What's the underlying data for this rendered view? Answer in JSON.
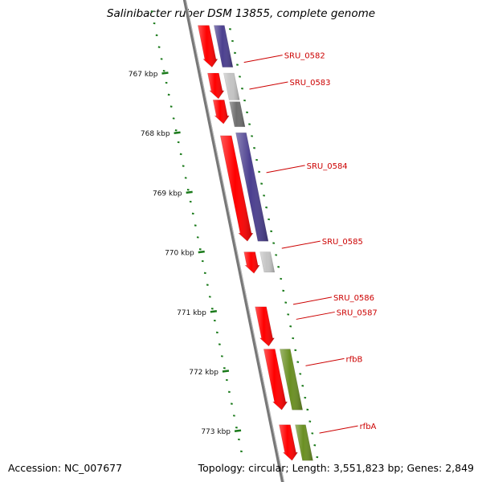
{
  "title": "Salinibacter ruber DSM 13855, complete genome",
  "accession_line": "Accession: NC_007677",
  "topology_line": "Topology: circular; Length: 3,551,823 bp; Genes: 2,849",
  "colors": {
    "forward_cds": "#ff0000",
    "reverse_cds": "#4b3f8f",
    "rna_gray_light": "#c4c4c4",
    "rna_gray_dark": "#6e6e6e",
    "green_gene": "#6a8f22",
    "tick": "#1a7a1a",
    "label": "#cc0000",
    "backbone": "#777777"
  },
  "scale_labels": [
    {
      "kbp": 767,
      "text": "767 kbp"
    },
    {
      "kbp": 768,
      "text": "768 kbp"
    },
    {
      "kbp": 769,
      "text": "769 kbp"
    },
    {
      "kbp": 770,
      "text": "770 kbp"
    },
    {
      "kbp": 771,
      "text": "771 kbp"
    },
    {
      "kbp": 772,
      "text": "772 kbp"
    },
    {
      "kbp": 773,
      "text": "773 kbp"
    }
  ],
  "gene_labels": [
    {
      "name": "SRU_0582",
      "kbp": 766.82
    },
    {
      "name": "SRU_0583",
      "kbp": 767.27
    },
    {
      "name": "SRU_0584",
      "kbp": 768.67
    },
    {
      "name": "SRU_0585",
      "kbp": 769.94
    },
    {
      "name": "SRU_0586",
      "kbp": 770.88
    },
    {
      "name": "SRU_0587",
      "kbp": 771.13
    },
    {
      "name": "rfbB",
      "kbp": 771.91
    },
    {
      "name": "rfbA",
      "kbp": 773.04
    }
  ],
  "features": [
    {
      "strand": "forward",
      "start": 766.2,
      "end": 766.9,
      "color": "forward_cds"
    },
    {
      "strand": "reverse",
      "start": 766.2,
      "end": 766.9,
      "color": "reverse_cds"
    },
    {
      "strand": "forward",
      "start": 767.0,
      "end": 767.43,
      "color": "forward_cds"
    },
    {
      "strand": "reverse",
      "start": 767.0,
      "end": 767.45,
      "color": "rna_gray_light"
    },
    {
      "strand": "forward",
      "start": 767.45,
      "end": 767.85,
      "color": "forward_cds"
    },
    {
      "strand": "reverse",
      "start": 767.48,
      "end": 767.9,
      "color": "rna_gray_dark"
    },
    {
      "strand": "forward",
      "start": 768.05,
      "end": 769.82,
      "color": "forward_cds"
    },
    {
      "strand": "reverse",
      "start": 768.0,
      "end": 769.82,
      "color": "reverse_cds"
    },
    {
      "strand": "forward",
      "start": 770.0,
      "end": 770.36,
      "color": "forward_cds"
    },
    {
      "strand": "reverse",
      "start": 770.0,
      "end": 770.34,
      "color": "rna_gray_light"
    },
    {
      "strand": "forward",
      "start": 770.92,
      "end": 771.58,
      "color": "forward_cds"
    },
    {
      "strand": "forward",
      "start": 771.63,
      "end": 772.65,
      "color": "forward_cds"
    },
    {
      "strand": "reverse",
      "start": 771.63,
      "end": 772.65,
      "color": "green_gene"
    },
    {
      "strand": "forward",
      "start": 772.9,
      "end": 773.5,
      "color": "forward_cds"
    },
    {
      "strand": "reverse",
      "start": 772.9,
      "end": 773.5,
      "color": "green_gene"
    }
  ]
}
